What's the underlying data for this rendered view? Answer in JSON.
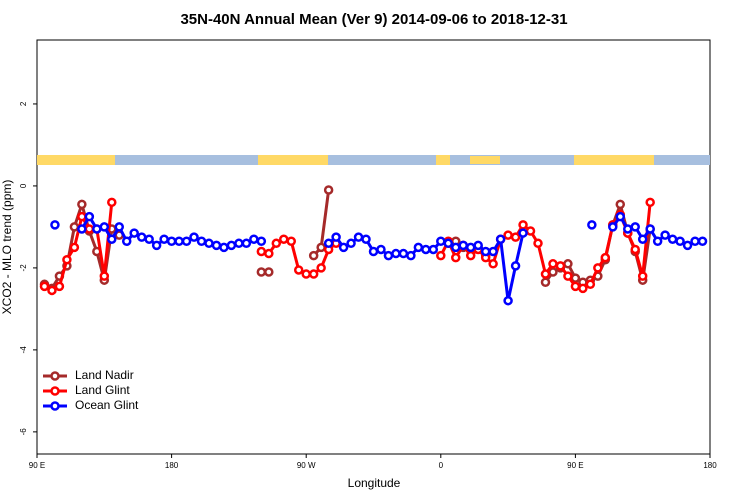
{
  "chart_data": {
    "type": "line",
    "title": "35N-40N Annual Mean (Ver 9)   2014-09-06 to 2018-12-31",
    "x_label": "Longitude",
    "y_label": "XCO2 - MLO trend (ppm)",
    "xlim": [
      90,
      540
    ],
    "xticks": [
      {
        "value": 90,
        "label": "90 E"
      },
      180,
      {
        "value": 270,
        "label": "90 W"
      },
      {
        "value": 360,
        "label": "0"
      },
      {
        "value": 450,
        "label": "90 E"
      },
      {
        "value": 540,
        "label": "180"
      }
    ],
    "ylim": [
      -6.54,
      3.56
    ],
    "yticks": [
      -6,
      -4,
      -2,
      0,
      2
    ],
    "legend": "bottom-left",
    "series": [
      {
        "name": "Land Nadir",
        "color": "#a52a2a",
        "x": [
          95,
          100,
          105,
          110,
          115,
          120,
          125,
          130,
          135,
          140,
          145,
          150,
          240,
          245,
          250,
          275,
          280,
          285,
          290,
          365,
          370,
          375,
          380,
          385,
          390,
          395,
          430,
          435,
          440,
          445,
          450,
          455,
          460,
          465,
          470,
          475,
          480,
          485,
          490,
          495,
          500
        ],
        "values": [
          -2.4,
          -2.5,
          -2.2,
          -1.95,
          -1.0,
          -0.45,
          -1.1,
          -1.6,
          -2.3,
          -1.05,
          -1.2,
          null,
          -2.1,
          -2.1,
          null,
          -1.7,
          -1.5,
          -0.1,
          null,
          -1.4,
          -1.35,
          -1.5,
          -1.55,
          -1.5,
          -1.7,
          null,
          -2.35,
          -2.1,
          -2.0,
          -1.9,
          -2.25,
          -2.35,
          -2.3,
          -2.2,
          -1.8,
          -0.95,
          -0.45,
          -1.15,
          -1.6,
          -2.3,
          -1.05
        ]
      },
      {
        "name": "Land Glint",
        "color": "#ff0000",
        "x": [
          95,
          100,
          105,
          110,
          115,
          120,
          125,
          130,
          135,
          140,
          145,
          240,
          245,
          250,
          255,
          260,
          265,
          270,
          275,
          280,
          285,
          290,
          295,
          360,
          365,
          370,
          375,
          380,
          385,
          390,
          395,
          400,
          405,
          410,
          415,
          420,
          425,
          430,
          435,
          440,
          445,
          450,
          455,
          460,
          465,
          470,
          475,
          480,
          485,
          490,
          495,
          500
        ],
        "values": [
          -2.45,
          -2.55,
          -2.45,
          -1.8,
          -1.5,
          -0.75,
          -1.05,
          -1.05,
          -2.2,
          -0.4,
          null,
          -1.6,
          -1.65,
          -1.4,
          -1.3,
          -1.35,
          -2.05,
          -2.15,
          -2.15,
          -2.0,
          -1.55,
          -1.4,
          null,
          -1.7,
          -1.35,
          -1.75,
          -1.45,
          -1.7,
          -1.55,
          -1.75,
          -1.9,
          -1.3,
          -1.2,
          -1.25,
          -0.95,
          -1.1,
          -1.4,
          -2.15,
          -1.9,
          -1.95,
          -2.2,
          -2.45,
          -2.5,
          -2.4,
          -2.0,
          -1.75,
          -0.95,
          -0.7,
          -1.15,
          -1.55,
          -2.2,
          -0.4
        ]
      },
      {
        "name": "Ocean Glint",
        "color": "#0000ff",
        "x": [
          102,
          105,
          120,
          125,
          130,
          135,
          140,
          145,
          150,
          155,
          160,
          165,
          170,
          175,
          180,
          185,
          190,
          195,
          200,
          205,
          210,
          215,
          220,
          225,
          230,
          235,
          240,
          245,
          285,
          290,
          295,
          300,
          305,
          310,
          315,
          320,
          325,
          330,
          335,
          340,
          345,
          350,
          355,
          360,
          365,
          370,
          375,
          380,
          385,
          390,
          395,
          400,
          405,
          410,
          415,
          420,
          461,
          465,
          475,
          480,
          485,
          490,
          495,
          500,
          505,
          510,
          515,
          520,
          525,
          530,
          535
        ],
        "values": [
          -0.95,
          null,
          -1.05,
          -0.75,
          -1.05,
          -1.0,
          -1.3,
          -1.0,
          -1.35,
          -1.15,
          -1.25,
          -1.3,
          -1.45,
          -1.3,
          -1.35,
          -1.35,
          -1.35,
          -1.25,
          -1.35,
          -1.4,
          -1.45,
          -1.5,
          -1.45,
          -1.4,
          -1.4,
          -1.3,
          -1.35,
          null,
          -1.4,
          -1.25,
          -1.5,
          -1.4,
          -1.25,
          -1.3,
          -1.6,
          -1.55,
          -1.7,
          -1.65,
          -1.65,
          -1.7,
          -1.5,
          -1.55,
          -1.55,
          -1.35,
          -1.4,
          -1.5,
          -1.45,
          -1.5,
          -1.45,
          -1.6,
          -1.6,
          -1.3,
          -2.8,
          -1.95,
          -1.15,
          null,
          -0.95,
          null,
          -1.0,
          -0.75,
          -1.05,
          -1.0,
          -1.3,
          -1.05,
          -1.35,
          -1.2,
          -1.3,
          -1.35,
          -1.45,
          -1.35,
          -1.35
        ]
      }
    ]
  }
}
